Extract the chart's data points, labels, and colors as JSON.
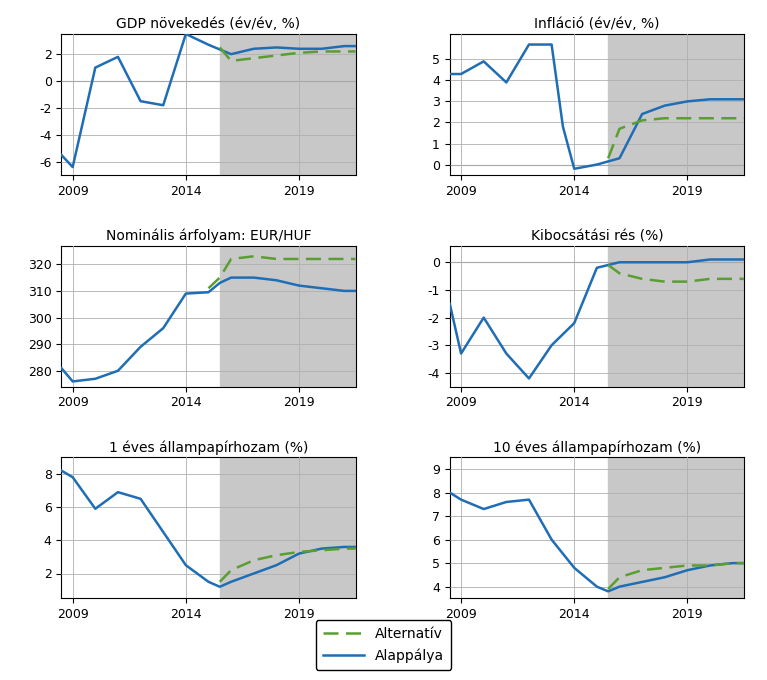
{
  "titles": [
    "GDP növekedés (év/év, %)",
    "Infláció (év/év, %)",
    "Nominális árfolyam: EUR/HUF",
    "Kibocsátási rés (%)",
    "1 éves állampapírhozam (%)",
    "10 éves állampapírhozam (%)"
  ],
  "forecast_start": 2016,
  "x_ticks": [
    2009,
    2014,
    2019
  ],
  "background_color": "#c8c8c8",
  "line_blue": "#1f6eb5",
  "line_green": "#5a9e32",
  "panels": [
    {
      "xlim": [
        2008.5,
        2021.5
      ],
      "ylim": [
        -7,
        3.5
      ],
      "yticks": [
        -6,
        -4,
        -2,
        0,
        2
      ],
      "baseline": 0,
      "alappálya_x": [
        2008.5,
        2009,
        2010,
        2011,
        2012,
        2013,
        2014,
        2015,
        2016,
        2017,
        2018,
        2019,
        2020,
        2021,
        2021.5
      ],
      "alappálya_y": [
        -5.5,
        -6.4,
        1.0,
        1.8,
        -1.5,
        -1.8,
        3.5,
        2.7,
        2.0,
        2.4,
        2.5,
        2.4,
        2.4,
        2.6,
        2.6
      ],
      "alternatív_x": [
        2015.5,
        2016,
        2017,
        2018,
        2019,
        2020,
        2021,
        2021.5
      ],
      "alternatív_y": [
        2.5,
        1.5,
        1.7,
        1.9,
        2.1,
        2.2,
        2.2,
        2.2
      ]
    },
    {
      "xlim": [
        2008.5,
        2021.5
      ],
      "ylim": [
        -0.5,
        6.2
      ],
      "yticks": [
        0,
        1,
        2,
        3,
        4,
        5
      ],
      "baseline": 0,
      "alappálya_x": [
        2008.5,
        2009,
        2010,
        2011,
        2012,
        2013,
        2013.5,
        2014,
        2015,
        2016,
        2017,
        2018,
        2019,
        2020,
        2021,
        2021.5
      ],
      "alappálya_y": [
        4.3,
        4.3,
        4.9,
        3.9,
        5.7,
        5.7,
        1.8,
        -0.2,
        0.0,
        0.3,
        2.4,
        2.8,
        3.0,
        3.1,
        3.1,
        3.1
      ],
      "alternatív_x": [
        2015.5,
        2016,
        2017,
        2018,
        2019,
        2020,
        2021,
        2021.5
      ],
      "alternatív_y": [
        0.3,
        1.7,
        2.1,
        2.2,
        2.2,
        2.2,
        2.2,
        2.2
      ]
    },
    {
      "xlim": [
        2008.5,
        2021.5
      ],
      "ylim": [
        274,
        327
      ],
      "yticks": [
        280,
        290,
        300,
        310,
        320
      ],
      "baseline": null,
      "alappálya_x": [
        2008.5,
        2009,
        2010,
        2011,
        2012,
        2013,
        2014,
        2015,
        2015.5,
        2016,
        2017,
        2018,
        2019,
        2020,
        2021,
        2021.5
      ],
      "alappálya_y": [
        281,
        276,
        277,
        280,
        289,
        296,
        309,
        309.5,
        313,
        315,
        315,
        314,
        312,
        311,
        310,
        310
      ],
      "alternatív_x": [
        2015.0,
        2015.5,
        2016,
        2017,
        2018,
        2019,
        2020,
        2021,
        2021.5
      ],
      "alternatív_y": [
        311,
        315,
        322,
        323,
        322,
        322,
        322,
        322,
        322
      ]
    },
    {
      "xlim": [
        2008.5,
        2021.5
      ],
      "ylim": [
        -4.5,
        0.6
      ],
      "yticks": [
        -4,
        -3,
        -2,
        -1,
        0
      ],
      "baseline": 0,
      "alappálya_x": [
        2008.5,
        2009,
        2010,
        2011,
        2012,
        2013,
        2014,
        2015,
        2016,
        2017,
        2018,
        2019,
        2020,
        2021,
        2021.5
      ],
      "alappálya_y": [
        -1.5,
        -3.3,
        -2.0,
        -3.3,
        -4.2,
        -3.0,
        -2.2,
        -0.2,
        0.0,
        0.0,
        0.0,
        0.0,
        0.1,
        0.1,
        0.1
      ],
      "alternatív_x": [
        2015.5,
        2016,
        2017,
        2018,
        2019,
        2020,
        2021,
        2021.5
      ],
      "alternatív_y": [
        -0.1,
        -0.4,
        -0.6,
        -0.7,
        -0.7,
        -0.6,
        -0.6,
        -0.6
      ]
    },
    {
      "xlim": [
        2008.5,
        2021.5
      ],
      "ylim": [
        0.5,
        9
      ],
      "yticks": [
        2,
        4,
        6,
        8
      ],
      "baseline": null,
      "alappálya_x": [
        2008.5,
        2009,
        2010,
        2011,
        2012,
        2013,
        2014,
        2015,
        2015.5,
        2016,
        2017,
        2018,
        2019,
        2020,
        2021,
        2021.5
      ],
      "alappálya_y": [
        8.2,
        7.8,
        5.9,
        6.9,
        6.5,
        4.5,
        2.5,
        1.5,
        1.2,
        1.5,
        2.0,
        2.5,
        3.2,
        3.5,
        3.6,
        3.6
      ],
      "alternatív_x": [
        2015.5,
        2016,
        2017,
        2018,
        2019,
        2020,
        2021,
        2021.5
      ],
      "alternatív_y": [
        1.5,
        2.2,
        2.8,
        3.1,
        3.3,
        3.4,
        3.5,
        3.5
      ]
    },
    {
      "xlim": [
        2008.5,
        2021.5
      ],
      "ylim": [
        3.5,
        9.5
      ],
      "yticks": [
        4,
        5,
        6,
        7,
        8,
        9
      ],
      "baseline": null,
      "alappálya_x": [
        2008.5,
        2009,
        2010,
        2011,
        2012,
        2013,
        2014,
        2015,
        2015.5,
        2016,
        2017,
        2018,
        2019,
        2020,
        2021,
        2021.5
      ],
      "alappálya_y": [
        8.0,
        7.7,
        7.3,
        7.6,
        7.7,
        6.0,
        4.8,
        4.0,
        3.8,
        4.0,
        4.2,
        4.4,
        4.7,
        4.9,
        5.0,
        5.0
      ],
      "alternatív_x": [
        2015.5,
        2016,
        2017,
        2018,
        2019,
        2020,
        2021,
        2021.5
      ],
      "alternatív_y": [
        3.9,
        4.4,
        4.7,
        4.8,
        4.9,
        4.9,
        5.0,
        5.0
      ]
    }
  ],
  "legend_labels": [
    "Alternatív",
    "Alappálya"
  ]
}
